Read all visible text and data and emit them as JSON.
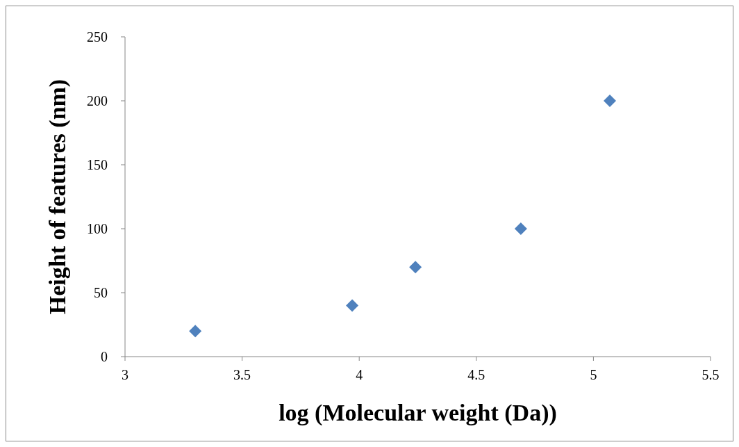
{
  "chart_data": {
    "type": "scatter",
    "xlabel": "log (Molecular weight (Da))",
    "ylabel": "Height of features (nm)",
    "x": [
      3.3,
      3.97,
      4.24,
      4.69,
      5.07
    ],
    "series": [
      {
        "color": "#4f81bd",
        "values": [
          20,
          40,
          70,
          100,
          200
        ]
      }
    ],
    "xlim": [
      3,
      5.5
    ],
    "xticks": [
      3,
      3.5,
      4,
      4.5,
      5,
      5.5
    ],
    "ylim": [
      0,
      250
    ],
    "yticks": [
      0,
      50,
      100,
      150,
      200,
      250
    ],
    "marker": "diamond",
    "grid": false
  }
}
